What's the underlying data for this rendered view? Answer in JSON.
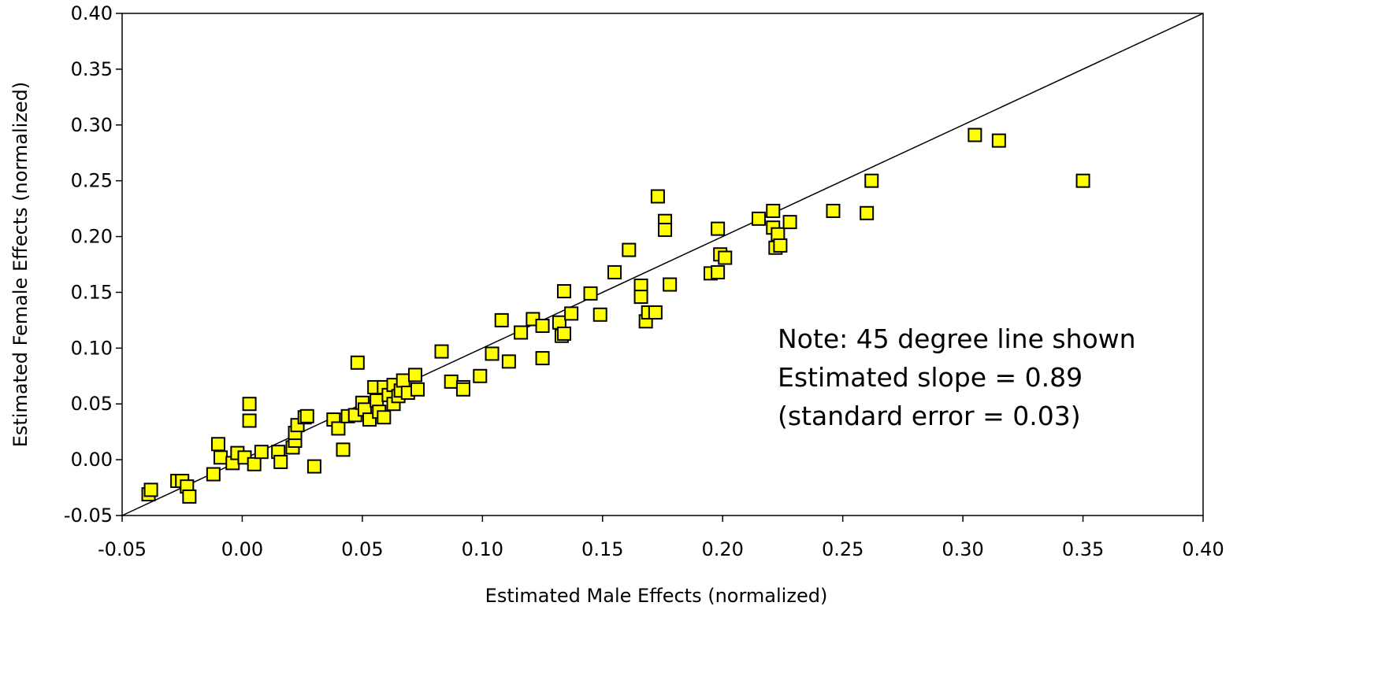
{
  "chart_data": {
    "type": "scatter",
    "title": "",
    "xlabel": "Estimated Male Effects (normalized)",
    "ylabel": "Estimated Female Effects (normalized)",
    "xlim": [
      -0.05,
      0.4
    ],
    "ylim": [
      -0.05,
      0.4
    ],
    "x_ticks": [
      "-0.05",
      "0.00",
      "0.05",
      "0.10",
      "0.15",
      "0.20",
      "0.25",
      "0.30",
      "0.35",
      "0.40"
    ],
    "y_ticks": [
      "-0.05",
      "0.00",
      "0.05",
      "0.10",
      "0.15",
      "0.20",
      "0.25",
      "0.30",
      "0.35",
      "0.40"
    ],
    "grid": false,
    "legend": "none",
    "marker": "square",
    "marker_color": "#FFFF00",
    "marker_edge_color": "#000000",
    "reference_line": {
      "slope": 1,
      "intercept": 0
    },
    "annotation": [
      "Note: 45 degree line shown",
      "Estimated slope = 0.89",
      "(standard error = 0.03)"
    ],
    "points": [
      [
        -0.039,
        -0.031
      ],
      [
        -0.038,
        -0.027
      ],
      [
        -0.027,
        -0.019
      ],
      [
        -0.025,
        -0.019
      ],
      [
        -0.023,
        -0.024
      ],
      [
        -0.022,
        -0.033
      ],
      [
        -0.012,
        -0.013
      ],
      [
        -0.01,
        0.014
      ],
      [
        -0.009,
        0.002
      ],
      [
        -0.004,
        -0.003
      ],
      [
        -0.002,
        0.006
      ],
      [
        0.001,
        0.002
      ],
      [
        0.003,
        0.05
      ],
      [
        0.003,
        0.035
      ],
      [
        0.005,
        -0.004
      ],
      [
        0.008,
        0.007
      ],
      [
        0.015,
        0.007
      ],
      [
        0.016,
        -0.002
      ],
      [
        0.021,
        0.011
      ],
      [
        0.022,
        0.017
      ],
      [
        0.022,
        0.024
      ],
      [
        0.023,
        0.031
      ],
      [
        0.026,
        0.038
      ],
      [
        0.027,
        0.039
      ],
      [
        0.03,
        -0.006
      ],
      [
        0.038,
        0.036
      ],
      [
        0.04,
        0.028
      ],
      [
        0.042,
        0.009
      ],
      [
        0.044,
        0.039
      ],
      [
        0.047,
        0.04
      ],
      [
        0.048,
        0.087
      ],
      [
        0.05,
        0.051
      ],
      [
        0.051,
        0.045
      ],
      [
        0.053,
        0.036
      ],
      [
        0.055,
        0.065
      ],
      [
        0.056,
        0.053
      ],
      [
        0.057,
        0.043
      ],
      [
        0.059,
        0.065
      ],
      [
        0.059,
        0.038
      ],
      [
        0.061,
        0.058
      ],
      [
        0.063,
        0.067
      ],
      [
        0.063,
        0.05
      ],
      [
        0.065,
        0.057
      ],
      [
        0.066,
        0.062
      ],
      [
        0.067,
        0.071
      ],
      [
        0.069,
        0.06
      ],
      [
        0.072,
        0.076
      ],
      [
        0.073,
        0.063
      ],
      [
        0.083,
        0.097
      ],
      [
        0.087,
        0.07
      ],
      [
        0.092,
        0.065
      ],
      [
        0.092,
        0.063
      ],
      [
        0.099,
        0.075
      ],
      [
        0.104,
        0.095
      ],
      [
        0.108,
        0.125
      ],
      [
        0.111,
        0.088
      ],
      [
        0.116,
        0.114
      ],
      [
        0.121,
        0.126
      ],
      [
        0.125,
        0.12
      ],
      [
        0.125,
        0.091
      ],
      [
        0.132,
        0.123
      ],
      [
        0.133,
        0.111
      ],
      [
        0.134,
        0.151
      ],
      [
        0.134,
        0.113
      ],
      [
        0.137,
        0.131
      ],
      [
        0.145,
        0.149
      ],
      [
        0.149,
        0.13
      ],
      [
        0.155,
        0.168
      ],
      [
        0.161,
        0.188
      ],
      [
        0.166,
        0.156
      ],
      [
        0.166,
        0.146
      ],
      [
        0.168,
        0.124
      ],
      [
        0.169,
        0.132
      ],
      [
        0.172,
        0.132
      ],
      [
        0.173,
        0.236
      ],
      [
        0.176,
        0.214
      ],
      [
        0.176,
        0.206
      ],
      [
        0.178,
        0.157
      ],
      [
        0.195,
        0.167
      ],
      [
        0.198,
        0.168
      ],
      [
        0.198,
        0.207
      ],
      [
        0.199,
        0.184
      ],
      [
        0.201,
        0.181
      ],
      [
        0.215,
        0.216
      ],
      [
        0.221,
        0.223
      ],
      [
        0.221,
        0.208
      ],
      [
        0.222,
        0.19
      ],
      [
        0.223,
        0.202
      ],
      [
        0.224,
        0.192
      ],
      [
        0.228,
        0.213
      ],
      [
        0.246,
        0.223
      ],
      [
        0.26,
        0.221
      ],
      [
        0.262,
        0.25
      ],
      [
        0.305,
        0.291
      ],
      [
        0.315,
        0.286
      ],
      [
        0.35,
        0.25
      ]
    ]
  }
}
